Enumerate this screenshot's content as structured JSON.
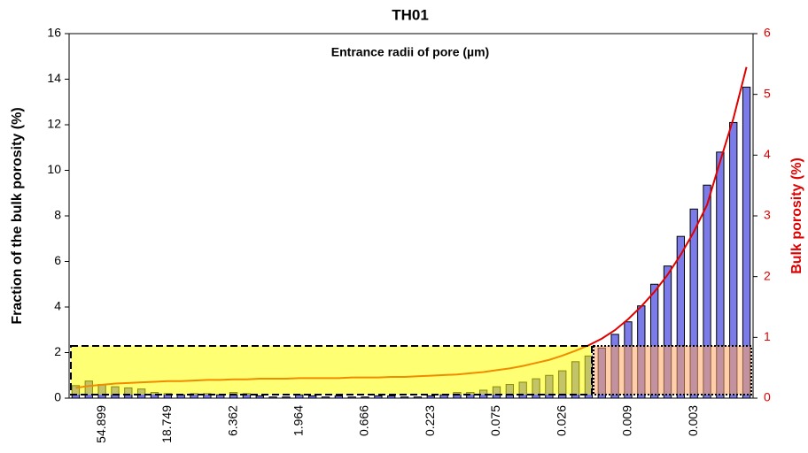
{
  "chart_data": {
    "type": "bar_line",
    "title": "TH01",
    "xlabel": "Entrance radii of pore (µm)",
    "ylabel": "Fraction of the bulk porosity (%)",
    "y2label": "Bulk porosity (%)",
    "categories": [
      null,
      null,
      "54.899",
      null,
      null,
      null,
      null,
      "18.749",
      null,
      null,
      null,
      null,
      "6.362",
      null,
      null,
      null,
      null,
      "1.964",
      null,
      null,
      null,
      null,
      "0.666",
      null,
      null,
      null,
      null,
      "0.223",
      null,
      null,
      null,
      null,
      "0.075",
      null,
      null,
      null,
      null,
      "0.026",
      null,
      null,
      null,
      null,
      "0.009",
      null,
      null,
      null,
      null,
      "0.003",
      null,
      null,
      null,
      null
    ],
    "series": [
      {
        "name": "Fraction of the bulk porosity",
        "color": "#7b7bea",
        "axis": "y",
        "values": [
          0.55,
          0.75,
          0.6,
          0.5,
          0.45,
          0.4,
          0.25,
          0.2,
          0.15,
          0.2,
          0.2,
          0.15,
          0.25,
          0.2,
          0.1,
          0.05,
          0.05,
          0.15,
          0.1,
          0.05,
          0.1,
          0.05,
          0.05,
          0.1,
          0.1,
          0.05,
          0.05,
          0.1,
          0.15,
          0.25,
          0.25,
          0.35,
          0.5,
          0.6,
          0.7,
          0.85,
          1.0,
          1.2,
          1.6,
          1.85,
          2.2,
          2.8,
          3.35,
          4.05,
          5.0,
          5.8,
          7.1,
          8.3,
          9.35,
          10.8,
          12.1,
          13.65
        ]
      },
      {
        "name": "Bulk porosity",
        "color": "#e00000",
        "axis": "y2",
        "values": [
          0.17,
          0.2,
          0.22,
          0.24,
          0.25,
          0.26,
          0.27,
          0.28,
          0.28,
          0.29,
          0.3,
          0.3,
          0.31,
          0.31,
          0.32,
          0.32,
          0.32,
          0.33,
          0.33,
          0.33,
          0.33,
          0.34,
          0.34,
          0.34,
          0.35,
          0.35,
          0.36,
          0.37,
          0.38,
          0.39,
          0.41,
          0.43,
          0.46,
          0.49,
          0.53,
          0.58,
          0.63,
          0.7,
          0.78,
          0.87,
          0.98,
          1.12,
          1.3,
          1.51,
          1.75,
          2.03,
          2.36,
          2.74,
          3.18,
          3.9,
          4.6,
          5.45
        ]
      }
    ],
    "ylim": [
      0,
      16
    ],
    "yticks": [
      0,
      2,
      4,
      6,
      8,
      10,
      12,
      14,
      16
    ],
    "y2lim": [
      0,
      6
    ],
    "y2ticks": [
      0,
      1,
      2,
      3,
      4,
      5,
      6
    ],
    "y2color": "#e00000"
  }
}
